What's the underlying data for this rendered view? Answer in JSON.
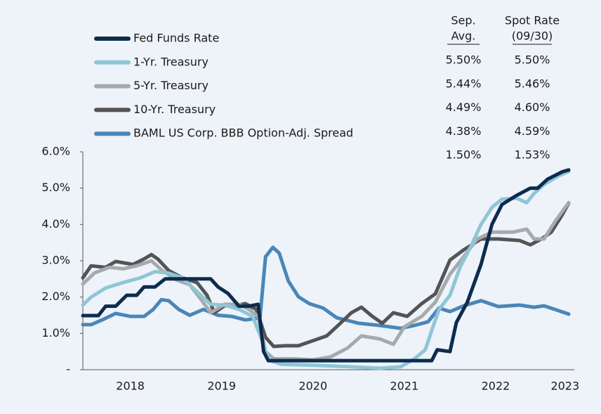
{
  "chart_data": {
    "type": "line",
    "ylim": [
      0,
      6
    ],
    "yticks": [
      {
        "value": 0,
        "label": "-"
      },
      {
        "value": 1,
        "label": "1.0%"
      },
      {
        "value": 2,
        "label": "2.0%"
      },
      {
        "value": 3,
        "label": "3.0%"
      },
      {
        "value": 4,
        "label": "4.0%"
      },
      {
        "value": 5,
        "label": "5.0%"
      },
      {
        "value": 6,
        "label": "6.0%"
      }
    ],
    "xlim": [
      2018,
      2023.32
    ],
    "xticks": [
      {
        "value": 2018.52,
        "label": "2018"
      },
      {
        "value": 2019.52,
        "label": "2019"
      },
      {
        "value": 2020.52,
        "label": "2020"
      },
      {
        "value": 2021.52,
        "label": "2021"
      },
      {
        "value": 2022.52,
        "label": "2022"
      },
      {
        "value": 2023.28,
        "label": "2023"
      }
    ],
    "table_headers": [
      [
        "Sep.",
        "Avg."
      ],
      [
        "Spot Rate",
        "(09/30)"
      ]
    ],
    "series": [
      {
        "name": "Fed Funds Rate",
        "color": "#0d2b4e",
        "sep_avg": "5.50%",
        "spot_rate": "5.50%",
        "x": [
          2018,
          2018.17,
          2018.25,
          2018.36,
          2018.48,
          2018.59,
          2018.67,
          2018.79,
          2018.9,
          2019.4,
          2019.48,
          2019.59,
          2019.71,
          2019.82,
          2019.92,
          2019.98,
          2020.03,
          2021.71,
          2021.82,
          2021.88,
          2022.02,
          2022.09,
          2022.21,
          2022.36,
          2022.48,
          2022.59,
          2022.75,
          2022.9,
          2022.98,
          2023.09,
          2023.25,
          2023.32
        ],
        "values": [
          1.49,
          1.49,
          1.75,
          1.75,
          2.05,
          2.05,
          2.28,
          2.28,
          2.5,
          2.5,
          2.28,
          2.1,
          1.75,
          1.75,
          1.8,
          0.5,
          0.25,
          0.25,
          0.25,
          0.55,
          0.5,
          1.3,
          1.86,
          2.9,
          4.0,
          4.55,
          4.8,
          5.0,
          5.0,
          5.25,
          5.45,
          5.5
        ]
      },
      {
        "name": "1-Yr. Treasury",
        "color": "#8ec6d6",
        "sep_avg": "5.44%",
        "spot_rate": "5.46%",
        "x": [
          2018,
          2018.09,
          2018.25,
          2018.44,
          2018.63,
          2018.79,
          2018.94,
          2019.09,
          2019.25,
          2019.4,
          2019.55,
          2019.71,
          2019.86,
          2019.98,
          2020.03,
          2020.17,
          2020.55,
          2020.94,
          2021.25,
          2021.48,
          2021.63,
          2021.75,
          2021.82,
          2021.9,
          2022.02,
          2022.13,
          2022.25,
          2022.36,
          2022.48,
          2022.59,
          2022.75,
          2022.86,
          2022.94,
          2023.05,
          2023.21,
          2023.32
        ],
        "values": [
          1.78,
          2.0,
          2.25,
          2.4,
          2.53,
          2.7,
          2.66,
          2.53,
          2.15,
          1.8,
          1.78,
          1.66,
          1.47,
          0.7,
          0.27,
          0.15,
          0.12,
          0.08,
          0.04,
          0.08,
          0.3,
          0.55,
          1.08,
          1.66,
          2.05,
          2.82,
          3.4,
          4.0,
          4.47,
          4.7,
          4.72,
          4.6,
          4.85,
          5.1,
          5.34,
          5.46
        ]
      },
      {
        "name": "5-Yr. Treasury",
        "color": "#a7aaad",
        "sep_avg": "4.49%",
        "spot_rate": "4.60%",
        "x": [
          2018,
          2018.13,
          2018.29,
          2018.44,
          2018.59,
          2018.75,
          2018.86,
          2019.02,
          2019.17,
          2019.29,
          2019.4,
          2019.55,
          2019.71,
          2019.82,
          2019.92,
          2020.0,
          2020.09,
          2020.32,
          2020.52,
          2020.71,
          2020.9,
          2021.05,
          2021.25,
          2021.4,
          2021.52,
          2021.71,
          2021.86,
          2022.02,
          2022.17,
          2022.32,
          2022.48,
          2022.71,
          2022.86,
          2022.94,
          2023.05,
          2023.17,
          2023.32
        ],
        "values": [
          2.36,
          2.67,
          2.82,
          2.78,
          2.86,
          3.0,
          2.75,
          2.48,
          2.34,
          1.95,
          1.57,
          1.8,
          1.8,
          1.66,
          1.47,
          0.5,
          0.3,
          0.3,
          0.27,
          0.35,
          0.6,
          0.93,
          0.85,
          0.7,
          1.18,
          1.47,
          1.86,
          2.63,
          3.11,
          3.6,
          3.79,
          3.79,
          3.87,
          3.6,
          3.6,
          4.08,
          4.6
        ]
      },
      {
        "name": "10-Yr. Treasury",
        "color": "#545454",
        "sep_avg": "4.38%",
        "spot_rate": "4.59%",
        "x": [
          2018,
          2018.09,
          2018.25,
          2018.36,
          2018.55,
          2018.67,
          2018.75,
          2018.82,
          2018.94,
          2019.09,
          2019.25,
          2019.36,
          2019.44,
          2019.55,
          2019.71,
          2019.78,
          2019.9,
          2020.0,
          2020.09,
          2020.21,
          2020.36,
          2020.52,
          2020.67,
          2020.82,
          2020.94,
          2021.05,
          2021.17,
          2021.28,
          2021.4,
          2021.55,
          2021.71,
          2021.86,
          2022.02,
          2022.17,
          2022.36,
          2022.55,
          2022.78,
          2022.9,
          2023.02,
          2023.13,
          2023.25,
          2023.32
        ],
        "values": [
          2.53,
          2.86,
          2.82,
          2.98,
          2.9,
          3.05,
          3.17,
          3.05,
          2.73,
          2.53,
          2.4,
          2.05,
          1.57,
          1.76,
          1.78,
          1.82,
          1.66,
          0.89,
          0.64,
          0.66,
          0.66,
          0.8,
          0.93,
          1.28,
          1.57,
          1.72,
          1.47,
          1.28,
          1.57,
          1.47,
          1.82,
          2.09,
          3.02,
          3.3,
          3.6,
          3.6,
          3.56,
          3.44,
          3.6,
          3.79,
          4.27,
          4.59
        ]
      },
      {
        "name": "BAML US Corp. BBB Option-Adj. Spread",
        "color": "#4a86b8",
        "sep_avg": "1.50%",
        "spot_rate": "1.53%",
        "x": [
          2018,
          2018.09,
          2018.21,
          2018.36,
          2018.52,
          2018.67,
          2018.77,
          2018.86,
          2018.94,
          2019.05,
          2019.17,
          2019.32,
          2019.48,
          2019.63,
          2019.78,
          2019.94,
          2020.0,
          2020.08,
          2020.15,
          2020.25,
          2020.36,
          2020.48,
          2020.63,
          2020.78,
          2021.02,
          2021.25,
          2021.48,
          2021.63,
          2021.78,
          2021.9,
          2022.02,
          2022.17,
          2022.36,
          2022.55,
          2022.78,
          2022.94,
          2023.05,
          2023.17,
          2023.32
        ],
        "values": [
          1.24,
          1.24,
          1.37,
          1.55,
          1.47,
          1.47,
          1.66,
          1.93,
          1.9,
          1.66,
          1.5,
          1.66,
          1.5,
          1.47,
          1.37,
          1.43,
          3.11,
          3.37,
          3.21,
          2.44,
          2.01,
          1.82,
          1.7,
          1.43,
          1.28,
          1.22,
          1.14,
          1.22,
          1.32,
          1.7,
          1.6,
          1.76,
          1.9,
          1.74,
          1.78,
          1.72,
          1.76,
          1.66,
          1.53
        ]
      }
    ]
  }
}
